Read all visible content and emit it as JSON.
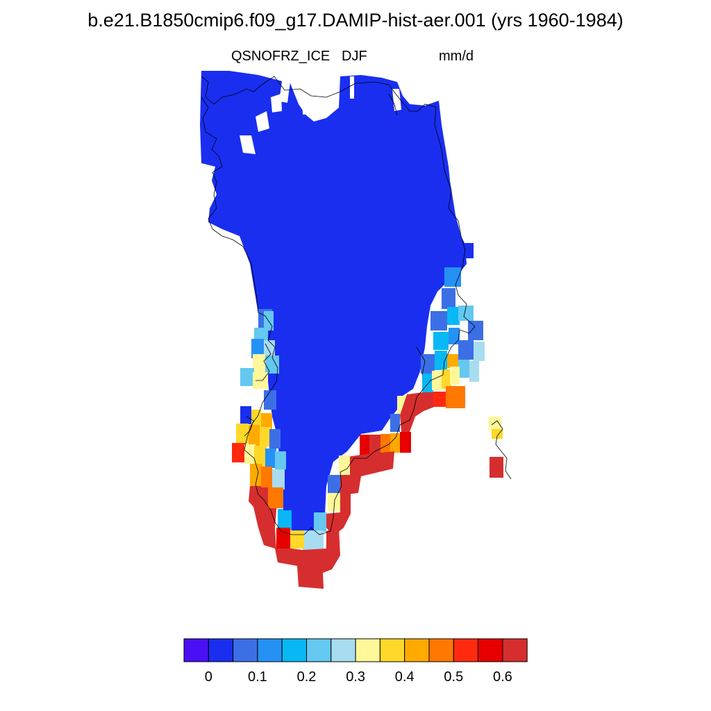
{
  "title": "b.e21.B1850cmip6.f09_g17.DAMIP-hist-aer.001 (yrs 1960-1984)",
  "variable": "QSNOFRZ_ICE",
  "season": "DJF",
  "units": "mm/d",
  "colorbar": {
    "colors": [
      "#4a10f5",
      "#1a2ef0",
      "#3c6fe6",
      "#2591f5",
      "#08b8f5",
      "#64c8f0",
      "#a8dcf0",
      "#fff799",
      "#ffd829",
      "#ffaa00",
      "#ff7800",
      "#ff2a0d",
      "#e60000",
      "#d62e2e"
    ],
    "tick_labels": [
      "0",
      "0.1",
      "0.2",
      "0.3",
      "0.4",
      "0.5",
      "0.6"
    ]
  }
}
